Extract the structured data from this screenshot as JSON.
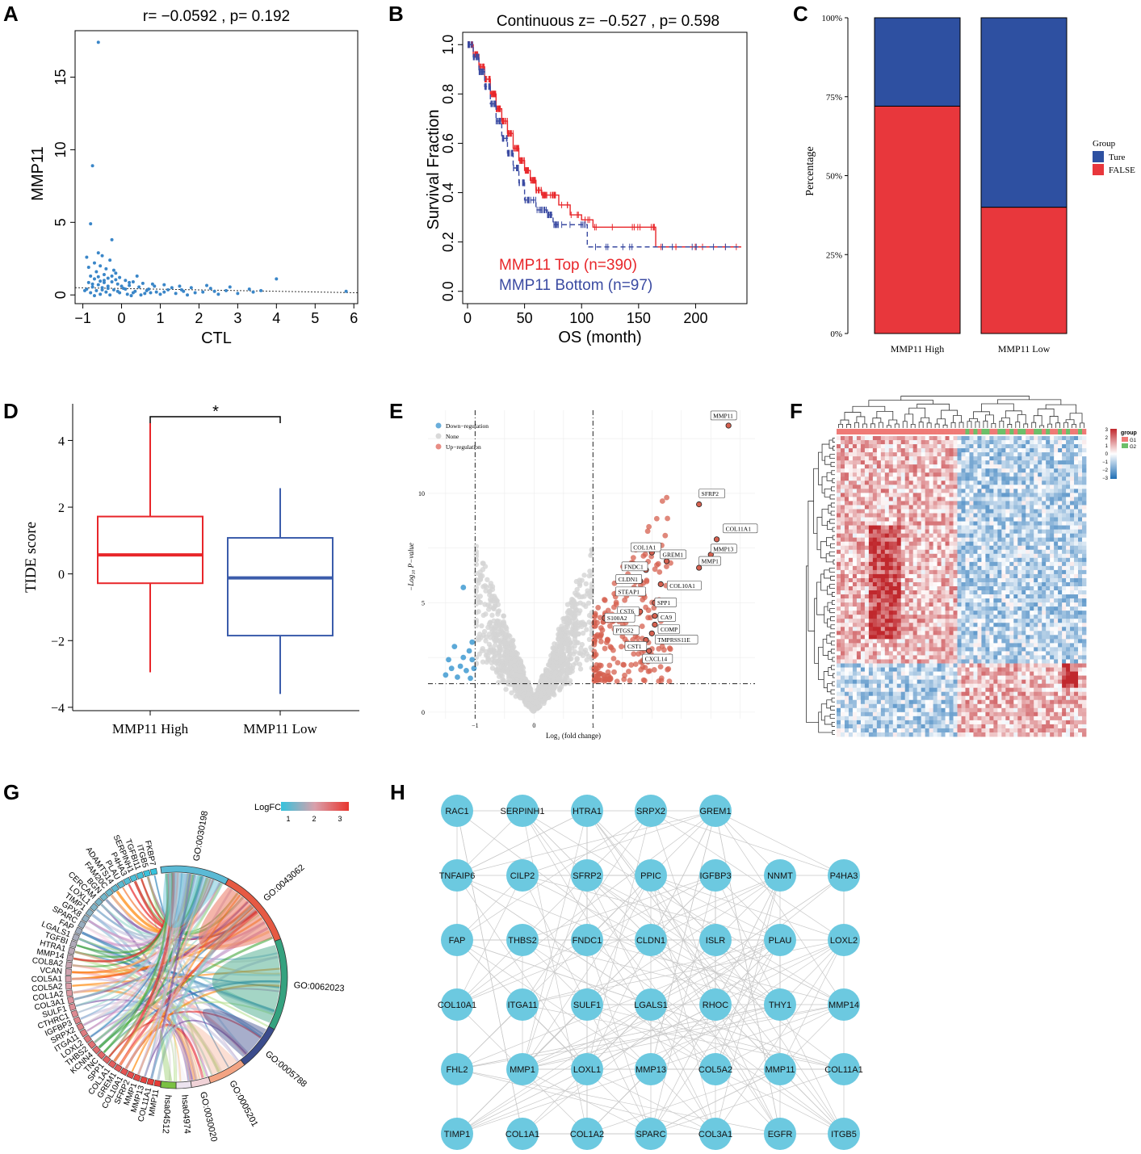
{
  "panels": [
    "A",
    "B",
    "C",
    "D",
    "E",
    "F",
    "G",
    "H"
  ],
  "chart_data": [
    {
      "id": "A",
      "type": "scatter",
      "title": "r= −0.0592 , p= 0.192",
      "xlabel": "CTL",
      "ylabel": "MMP11",
      "xlim": [
        -1.2,
        6.1
      ],
      "ylim": [
        -0.6,
        18.2
      ],
      "xticks": [
        -1,
        0,
        1,
        2,
        3,
        4,
        5,
        6
      ],
      "yticks": [
        0,
        5,
        10,
        15
      ],
      "trend_line": {
        "x": [
          -1.2,
          6.1
        ],
        "y": [
          0.5,
          0.15
        ]
      },
      "points": [
        [
          -0.6,
          17.4
        ],
        [
          -0.75,
          8.9
        ],
        [
          -0.8,
          4.9
        ],
        [
          -0.25,
          3.8
        ],
        [
          -0.6,
          2.9
        ],
        [
          -0.5,
          2.7
        ],
        [
          -0.9,
          2.6
        ],
        [
          -0.3,
          2.4
        ],
        [
          -0.7,
          2.2
        ],
        [
          -0.55,
          2.0
        ],
        [
          -0.85,
          1.9
        ],
        [
          -0.4,
          1.8
        ],
        [
          -0.2,
          1.7
        ],
        [
          -0.65,
          1.6
        ],
        [
          -0.15,
          1.5
        ],
        [
          -0.45,
          1.4
        ],
        [
          -0.8,
          1.3
        ],
        [
          -0.05,
          1.2
        ],
        [
          -0.35,
          1.15
        ],
        [
          -0.7,
          1.1
        ],
        [
          0.1,
          1.0
        ],
        [
          -0.55,
          0.95
        ],
        [
          -0.25,
          0.9
        ],
        [
          0.3,
          0.9
        ],
        [
          -0.85,
          0.85
        ],
        [
          0.55,
          0.8
        ],
        [
          -0.1,
          0.75
        ],
        [
          0.8,
          0.75
        ],
        [
          -0.6,
          0.7
        ],
        [
          1.1,
          0.7
        ],
        [
          0.2,
          0.65
        ],
        [
          -0.35,
          0.6
        ],
        [
          1.5,
          0.6
        ],
        [
          -0.75,
          0.55
        ],
        [
          0.45,
          0.55
        ],
        [
          1.8,
          0.5
        ],
        [
          -0.5,
          0.5
        ],
        [
          0.05,
          0.45
        ],
        [
          2.3,
          0.45
        ],
        [
          -0.9,
          0.4
        ],
        [
          0.7,
          0.4
        ],
        [
          -0.2,
          0.35
        ],
        [
          1.2,
          0.35
        ],
        [
          2.7,
          0.3
        ],
        [
          -0.65,
          0.3
        ],
        [
          0.35,
          0.25
        ],
        [
          1.6,
          0.25
        ],
        [
          -0.4,
          0.2
        ],
        [
          0.9,
          0.2
        ],
        [
          2.1,
          0.2
        ],
        [
          -0.8,
          0.15
        ],
        [
          -0.05,
          0.15
        ],
        [
          0.6,
          0.1
        ],
        [
          1.4,
          0.1
        ],
        [
          3.0,
          0.1
        ],
        [
          -0.55,
          0.05
        ],
        [
          0.15,
          0.05
        ],
        [
          1.0,
          0.05
        ],
        [
          -0.3,
          0.0
        ],
        [
          0.5,
          0.0
        ],
        [
          2.5,
          0.05
        ],
        [
          -0.7,
          -0.05
        ],
        [
          0.25,
          -0.05
        ],
        [
          1.7,
          0.0
        ],
        [
          -0.15,
          1.05
        ],
        [
          0.4,
          1.3
        ],
        [
          -0.45,
          0.85
        ],
        [
          0.0,
          0.6
        ],
        [
          -0.95,
          0.3
        ],
        [
          0.65,
          0.3
        ],
        [
          2.8,
          0.55
        ],
        [
          3.3,
          0.4
        ],
        [
          3.6,
          0.3
        ],
        [
          4.0,
          1.1
        ],
        [
          3.4,
          0.2
        ],
        [
          5.8,
          0.25
        ],
        [
          2.2,
          0.65
        ],
        [
          1.9,
          0.15
        ],
        [
          1.3,
          0.5
        ],
        [
          0.85,
          0.6
        ],
        [
          -0.6,
          1.25
        ],
        [
          -0.25,
          1.3
        ],
        [
          0.2,
          0.85
        ],
        [
          -0.5,
          0.35
        ],
        [
          -0.1,
          0.25
        ],
        [
          0.75,
          0.15
        ],
        [
          1.55,
          0.35
        ],
        [
          2.4,
          0.25
        ],
        [
          -0.35,
          0.45
        ],
        [
          0.1,
          0.4
        ],
        [
          -0.75,
          0.75
        ],
        [
          -0.45,
          1.0
        ],
        [
          0.3,
          0.15
        ],
        [
          1.1,
          0.2
        ]
      ]
    },
    {
      "id": "B",
      "type": "line",
      "title": "Continuous z= −0.527 , p= 0.598",
      "xlabel": "OS (month)",
      "ylabel": "Survival Fraction",
      "xlim": [
        0,
        245
      ],
      "ylim": [
        -0.05,
        1.05
      ],
      "xticks": [
        0,
        50,
        100,
        150,
        200
      ],
      "yticks": [
        0.0,
        0.2,
        0.4,
        0.6,
        0.8,
        1.0
      ],
      "series": [
        {
          "name": "MMP11 Top (n=390)",
          "color": "#e8262a",
          "style": "solid",
          "x": [
            0,
            5,
            10,
            15,
            20,
            25,
            30,
            35,
            40,
            45,
            50,
            55,
            60,
            65,
            70,
            80,
            90,
            100,
            110,
            130,
            150,
            163,
            165,
            200,
            240
          ],
          "y": [
            1.0,
            0.96,
            0.91,
            0.86,
            0.8,
            0.74,
            0.69,
            0.64,
            0.58,
            0.53,
            0.49,
            0.45,
            0.41,
            0.39,
            0.39,
            0.35,
            0.31,
            0.29,
            0.26,
            0.26,
            0.26,
            0.26,
            0.18,
            0.18,
            0.18
          ]
        },
        {
          "name": "MMP11 Bottom (n=97)",
          "color": "#3b4ba2",
          "style": "dashed",
          "x": [
            0,
            5,
            10,
            15,
            20,
            25,
            30,
            35,
            40,
            45,
            50,
            60,
            70,
            75,
            80,
            100,
            105,
            130,
            165,
            200,
            240
          ],
          "y": [
            1.0,
            0.95,
            0.89,
            0.83,
            0.76,
            0.69,
            0.62,
            0.56,
            0.5,
            0.44,
            0.37,
            0.33,
            0.31,
            0.27,
            0.27,
            0.27,
            0.18,
            0.18,
            0.18,
            0.18,
            0.18
          ]
        }
      ]
    },
    {
      "id": "C",
      "type": "bar",
      "stacked": true,
      "ylabel": "Percentage",
      "categories": [
        "MMP11 High",
        "MMP11 Low"
      ],
      "yticks": [
        "0%",
        "25%",
        "50%",
        "75%",
        "100%"
      ],
      "legend_title": "Group",
      "series": [
        {
          "name": "FALSE",
          "color": "#e8373c",
          "values": [
            72,
            40
          ]
        },
        {
          "name": "Ture",
          "color": "#2e50a1",
          "values": [
            28,
            60
          ]
        }
      ]
    },
    {
      "id": "D",
      "type": "box",
      "ylabel": "TIDE score",
      "categories": [
        "MMP11 High",
        "MMP11 Low"
      ],
      "ylim": [
        -4.1,
        5.1
      ],
      "yticks": [
        -4,
        -2,
        0,
        2,
        4
      ],
      "significance": "*",
      "boxes": [
        {
          "name": "MMP11 High",
          "color": "#e8262a",
          "min": -2.95,
          "q1": -0.28,
          "median": 0.57,
          "q3": 1.72,
          "max": 4.52
        },
        {
          "name": "MMP11 Low",
          "color": "#3b5cab",
          "min": -3.6,
          "q1": -1.85,
          "median": -0.12,
          "q3": 1.08,
          "max": 2.57
        }
      ]
    },
    {
      "id": "E",
      "type": "scatter",
      "subtype": "volcano",
      "xlabel": "Log₂ (fold change)",
      "ylabel": "−Log₁₀ P−value",
      "xlim": [
        -1.8,
        3.75
      ],
      "ylim": [
        -0.3,
        13.8
      ],
      "xticks": [
        -1,
        0,
        1
      ],
      "yticks": [
        0,
        5,
        10
      ],
      "thresholds": {
        "x": [
          -1,
          1
        ],
        "y": 1.3
      },
      "legend": [
        {
          "name": "Down−regulation",
          "color": "#6aaedb"
        },
        {
          "name": "None",
          "color": "#d9d9d9"
        },
        {
          "name": "Up−regulation",
          "color": "#e88d84"
        }
      ],
      "labeled_genes": [
        {
          "gene": "MMP11",
          "x": 3.3,
          "y": 13.1
        },
        {
          "gene": "SFRP2",
          "x": 2.8,
          "y": 9.5
        },
        {
          "gene": "COL11A1",
          "x": 3.1,
          "y": 7.9
        },
        {
          "gene": "MMP13",
          "x": 3.0,
          "y": 7.2
        },
        {
          "gene": "MMP1",
          "x": 2.8,
          "y": 6.6
        },
        {
          "gene": "COL1A1",
          "x": 2.0,
          "y": 7.3
        },
        {
          "gene": "GREM1",
          "x": 2.25,
          "y": 6.9
        },
        {
          "gene": "FNDC1",
          "x": 1.9,
          "y": 6.5
        },
        {
          "gene": "CLDN1",
          "x": 1.8,
          "y": 6.0
        },
        {
          "gene": "COL10A1",
          "x": 2.15,
          "y": 5.85
        },
        {
          "gene": "STEAP1",
          "x": 1.85,
          "y": 5.5
        },
        {
          "gene": "SPP1",
          "x": 2.05,
          "y": 5.0
        },
        {
          "gene": "CST6",
          "x": 1.8,
          "y": 4.6
        },
        {
          "gene": "CA9",
          "x": 2.05,
          "y": 4.4
        },
        {
          "gene": "S100A2",
          "x": 1.2,
          "y": 4.3
        },
        {
          "gene": "PTGS2",
          "x": 1.7,
          "y": 3.8
        },
        {
          "gene": "COMP",
          "x": 2.05,
          "y": 4.0
        },
        {
          "gene": "TMPRSS11E",
          "x": 2.0,
          "y": 3.6
        },
        {
          "gene": "CST1",
          "x": 1.9,
          "y": 3.3
        },
        {
          "gene": "CXCL14",
          "x": 1.95,
          "y": 2.8
        }
      ]
    },
    {
      "id": "F",
      "type": "heatmap",
      "legend_scale": [
        "3",
        "2",
        "1",
        "0",
        "−1",
        "−2",
        "−3"
      ],
      "legend_title": "group",
      "groups": [
        {
          "name": "G1",
          "color": "#ef7a76"
        },
        {
          "name": "G2",
          "color": "#6cbf6a"
        }
      ]
    },
    {
      "id": "G",
      "type": "chord",
      "legend_title": "LogFC",
      "legend_ticks": [
        "1",
        "2",
        "3"
      ],
      "genes": [
        "FKBP7",
        "ITGB5",
        "TGFBI11",
        "SERPINH1",
        "P4HA3",
        "PLAU",
        "ADAMTS14",
        "FAM20C",
        "BGN",
        "CERCAM",
        "LOXL1",
        "TIMP1",
        "GPX8",
        "SPARC",
        "FAP",
        "LGALS1",
        "TGFBI",
        "HTRA1",
        "MMP14",
        "COL8A2",
        "VCAN",
        "COL5A1",
        "COL5A2",
        "COL1A2",
        "COL3A1",
        "SULF1",
        "CTHRC1",
        "IGFBP3",
        "SRPX2",
        "ITGA11",
        "LOXL2",
        "THBS2",
        "KCNN4",
        "TNC",
        "SPP1",
        "COL1A1",
        "GREM1",
        "COL10A1",
        "SFRP2",
        "MMP1",
        "MMP13",
        "COL11A1",
        "MMP11"
      ],
      "terms": [
        {
          "id": "GO:0030198",
          "color": "#5bbad5"
        },
        {
          "id": "GO:0043062",
          "color": "#e65a43"
        },
        {
          "id": "GO:0062023",
          "color": "#35a27f"
        },
        {
          "id": "GO:0005788",
          "color": "#3b4c8c"
        },
        {
          "id": "GO:0005201",
          "color": "#f3a483"
        },
        {
          "id": "GO:0030020",
          "color": "#f0d2d7"
        },
        {
          "id": "hsa04974",
          "color": "#ece3ef"
        },
        {
          "id": "hsa04512",
          "color": "#7ac143"
        }
      ]
    },
    {
      "id": "H",
      "type": "network",
      "rows": [
        [
          "RAC1",
          "SERPINH1",
          "HTRA1",
          "SRPX2",
          "GREM1"
        ],
        [
          "TNFAIP6",
          "CILP2",
          "SFRP2",
          "PPIC",
          "IGFBP3",
          "NNMT",
          "P4HA3"
        ],
        [
          "FAP",
          "THBS2",
          "FNDC1",
          "CLDN1",
          "ISLR",
          "PLAU",
          "LOXL2"
        ],
        [
          "COL10A1",
          "ITGA11",
          "SULF1",
          "LGALS1",
          "RHOC",
          "THY1",
          "MMP14"
        ],
        [
          "FHL2",
          "MMP1",
          "LOXL1",
          "MMP13",
          "COL5A2",
          "MMP11",
          "COL11A1"
        ],
        [
          "TIMP1",
          "COL1A1",
          "COL1A2",
          "SPARC",
          "COL3A1",
          "EGFR",
          "ITGB5"
        ]
      ],
      "node_color": "#6cc9e0"
    }
  ]
}
